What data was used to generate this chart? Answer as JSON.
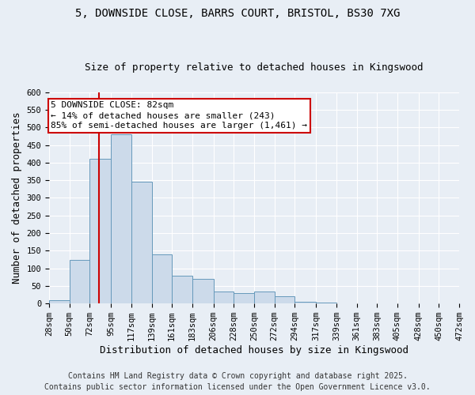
{
  "title_line1": "5, DOWNSIDE CLOSE, BARRS COURT, BRISTOL, BS30 7XG",
  "title_line2": "Size of property relative to detached houses in Kingswood",
  "xlabel": "Distribution of detached houses by size in Kingswood",
  "ylabel": "Number of detached properties",
  "bin_edges": [
    28,
    50,
    72,
    95,
    117,
    139,
    161,
    183,
    206,
    228,
    250,
    272,
    294,
    317,
    339,
    361,
    383,
    405,
    428,
    450,
    472
  ],
  "bar_heights": [
    10,
    125,
    410,
    480,
    345,
    140,
    80,
    70,
    35,
    30,
    35,
    20,
    5,
    2,
    1,
    1,
    0,
    0,
    0,
    1
  ],
  "bar_color": "#ccdaea",
  "bar_edge_color": "#6699bb",
  "property_size": 82,
  "property_line_color": "#cc0000",
  "annotation_line1": "5 DOWNSIDE CLOSE: 82sqm",
  "annotation_line2": "← 14% of detached houses are smaller (243)",
  "annotation_line3": "85% of semi-detached houses are larger (1,461) →",
  "annotation_box_color": "#ffffff",
  "annotation_box_edge_color": "#cc0000",
  "ylim": [
    0,
    600
  ],
  "yticks": [
    0,
    50,
    100,
    150,
    200,
    250,
    300,
    350,
    400,
    450,
    500,
    550,
    600
  ],
  "background_color": "#e8eef5",
  "footer_line1": "Contains HM Land Registry data © Crown copyright and database right 2025.",
  "footer_line2": "Contains public sector information licensed under the Open Government Licence v3.0.",
  "title_fontsize": 10,
  "subtitle_fontsize": 9,
  "axis_label_fontsize": 9,
  "tick_fontsize": 7.5,
  "annotation_fontsize": 8,
  "footer_fontsize": 7
}
